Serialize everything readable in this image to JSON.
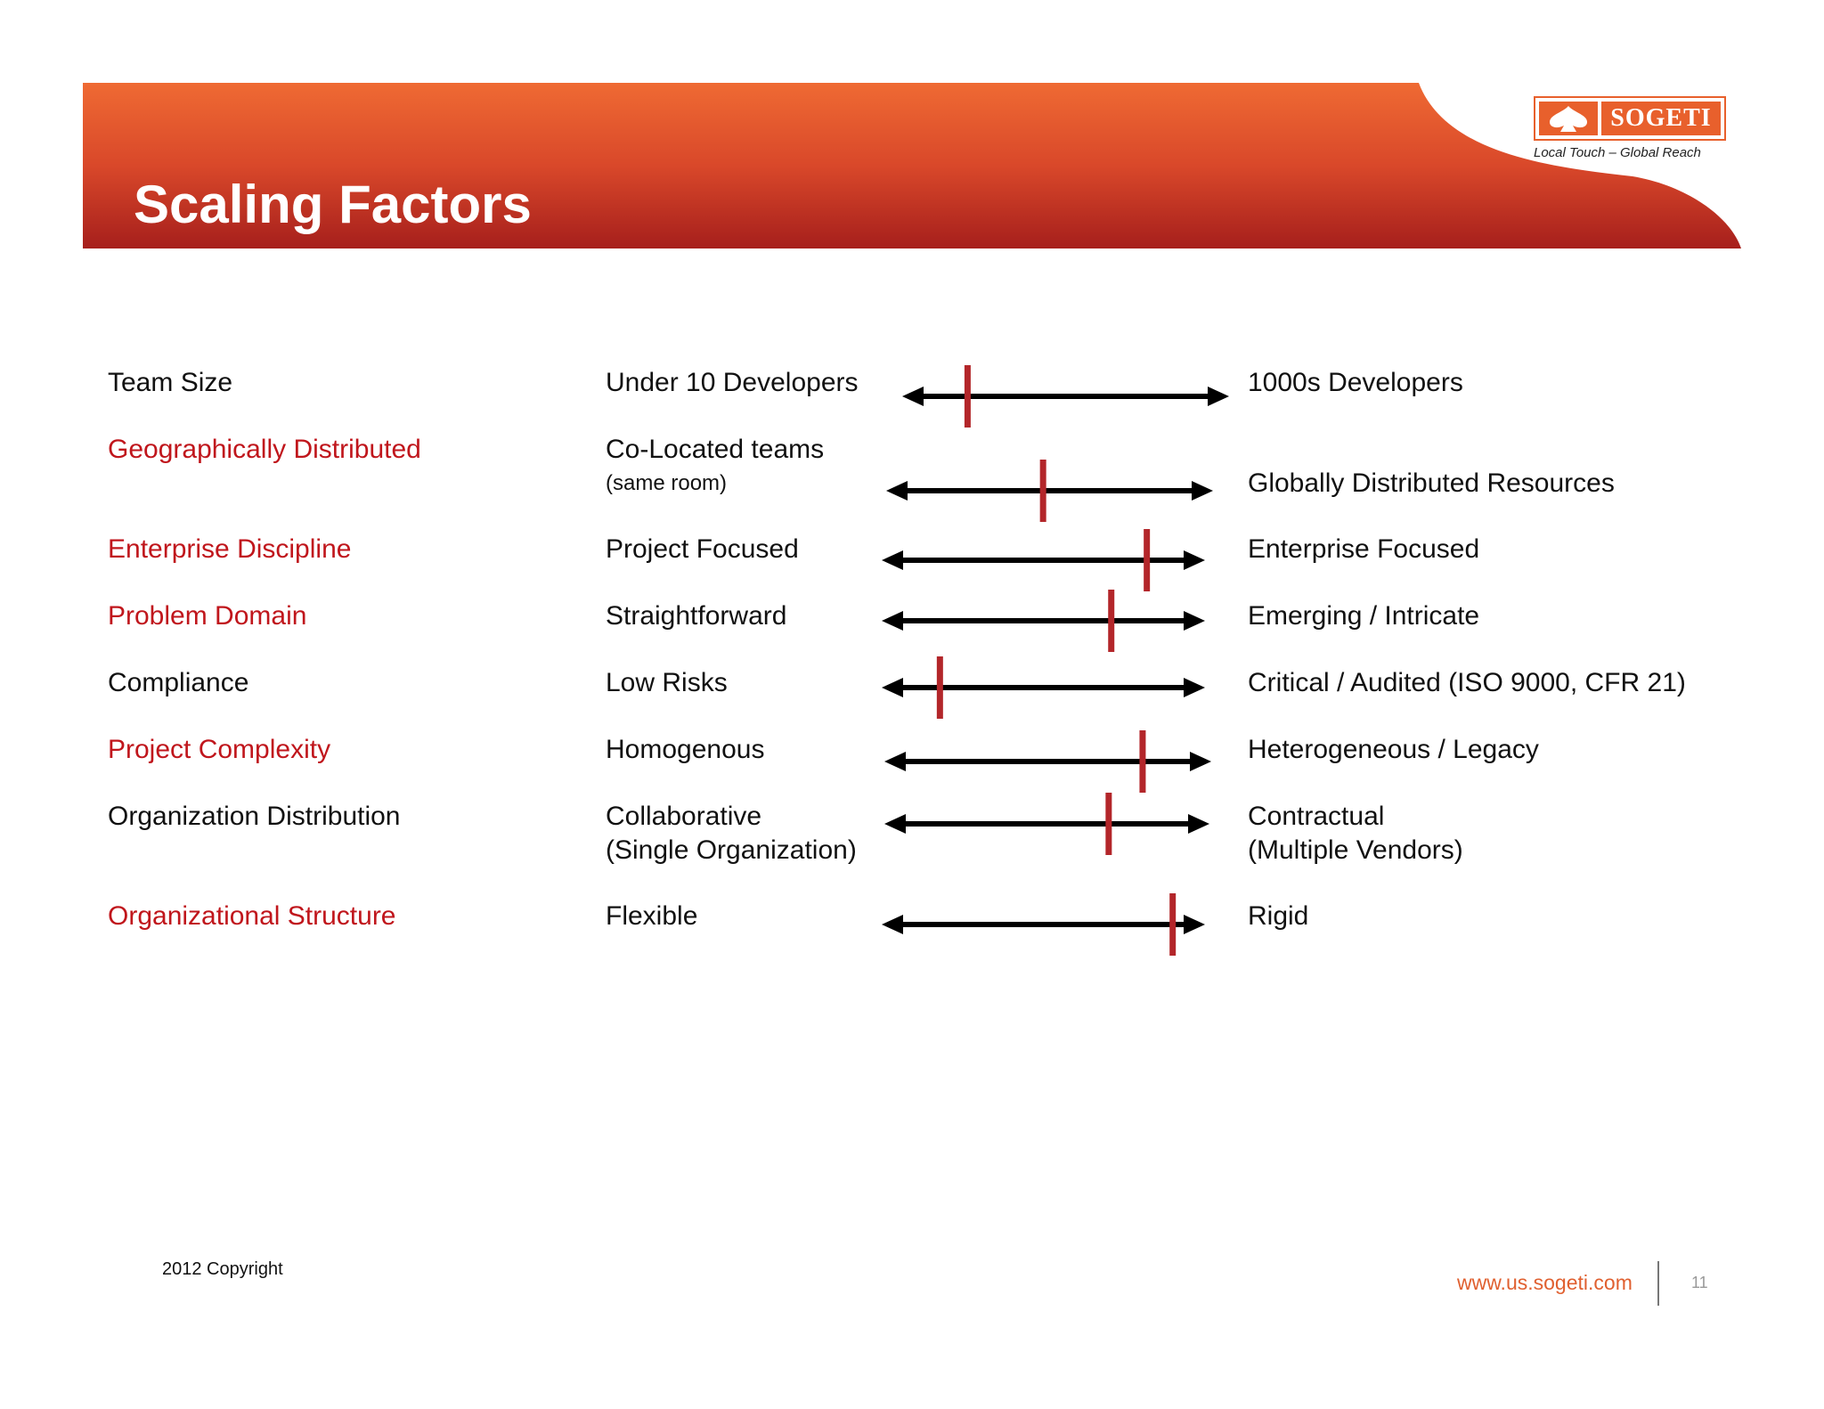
{
  "header": {
    "title": "Scaling Factors",
    "banner_color_light": "#ef6a33",
    "banner_color_dark": "#a61f1c"
  },
  "logo": {
    "brand": "SOGETI",
    "tagline": "Local Touch – Global Reach",
    "brand_color": "#e8602c"
  },
  "rows": [
    {
      "factor": "Team Size",
      "factor_color": "black",
      "left": "Under 10 Developers",
      "left_sub": "",
      "right": "1000s Developers",
      "right_line2": "",
      "position": 0.2
    },
    {
      "factor": "Geographically Distributed",
      "factor_color": "red",
      "left": "Co-Located teams",
      "left_sub": "(same room)",
      "right": "Globally Distributed Resources",
      "right_line2": "",
      "position": 0.48
    },
    {
      "factor": "Enterprise Discipline",
      "factor_color": "red",
      "left": "Project Focused",
      "left_sub": "",
      "right": "Enterprise Focused",
      "right_line2": "",
      "position": 0.82
    },
    {
      "factor": "Problem Domain",
      "factor_color": "red",
      "left": "Straightforward",
      "left_sub": "",
      "right": "Emerging / Intricate",
      "right_line2": "",
      "position": 0.71
    },
    {
      "factor": "Compliance",
      "factor_color": "black",
      "left": "Low Risks",
      "left_sub": "",
      "right": "Critical /  Audited (ISO 9000, CFR 21)",
      "right_line2": "",
      "position": 0.18
    },
    {
      "factor": "Project Complexity",
      "factor_color": "red",
      "left": "Homogenous",
      "left_sub": "",
      "right": "Heterogeneous / Legacy",
      "right_line2": "",
      "position": 0.79
    },
    {
      "factor": "Organization Distribution",
      "factor_color": "black",
      "left": "Collaborative",
      "left_sub": "(Single Organization)",
      "right": "Contractual",
      "right_line2": "(Multiple Vendors)",
      "position": 0.69
    },
    {
      "factor": "Organizational Structure",
      "factor_color": "red",
      "left": "Flexible",
      "left_sub": "",
      "right": "Rigid",
      "right_line2": "",
      "position": 0.9
    }
  ],
  "footer": {
    "copyright": "2012 Copyright",
    "website": "www.us.sogeti.com",
    "page_number": "11"
  }
}
